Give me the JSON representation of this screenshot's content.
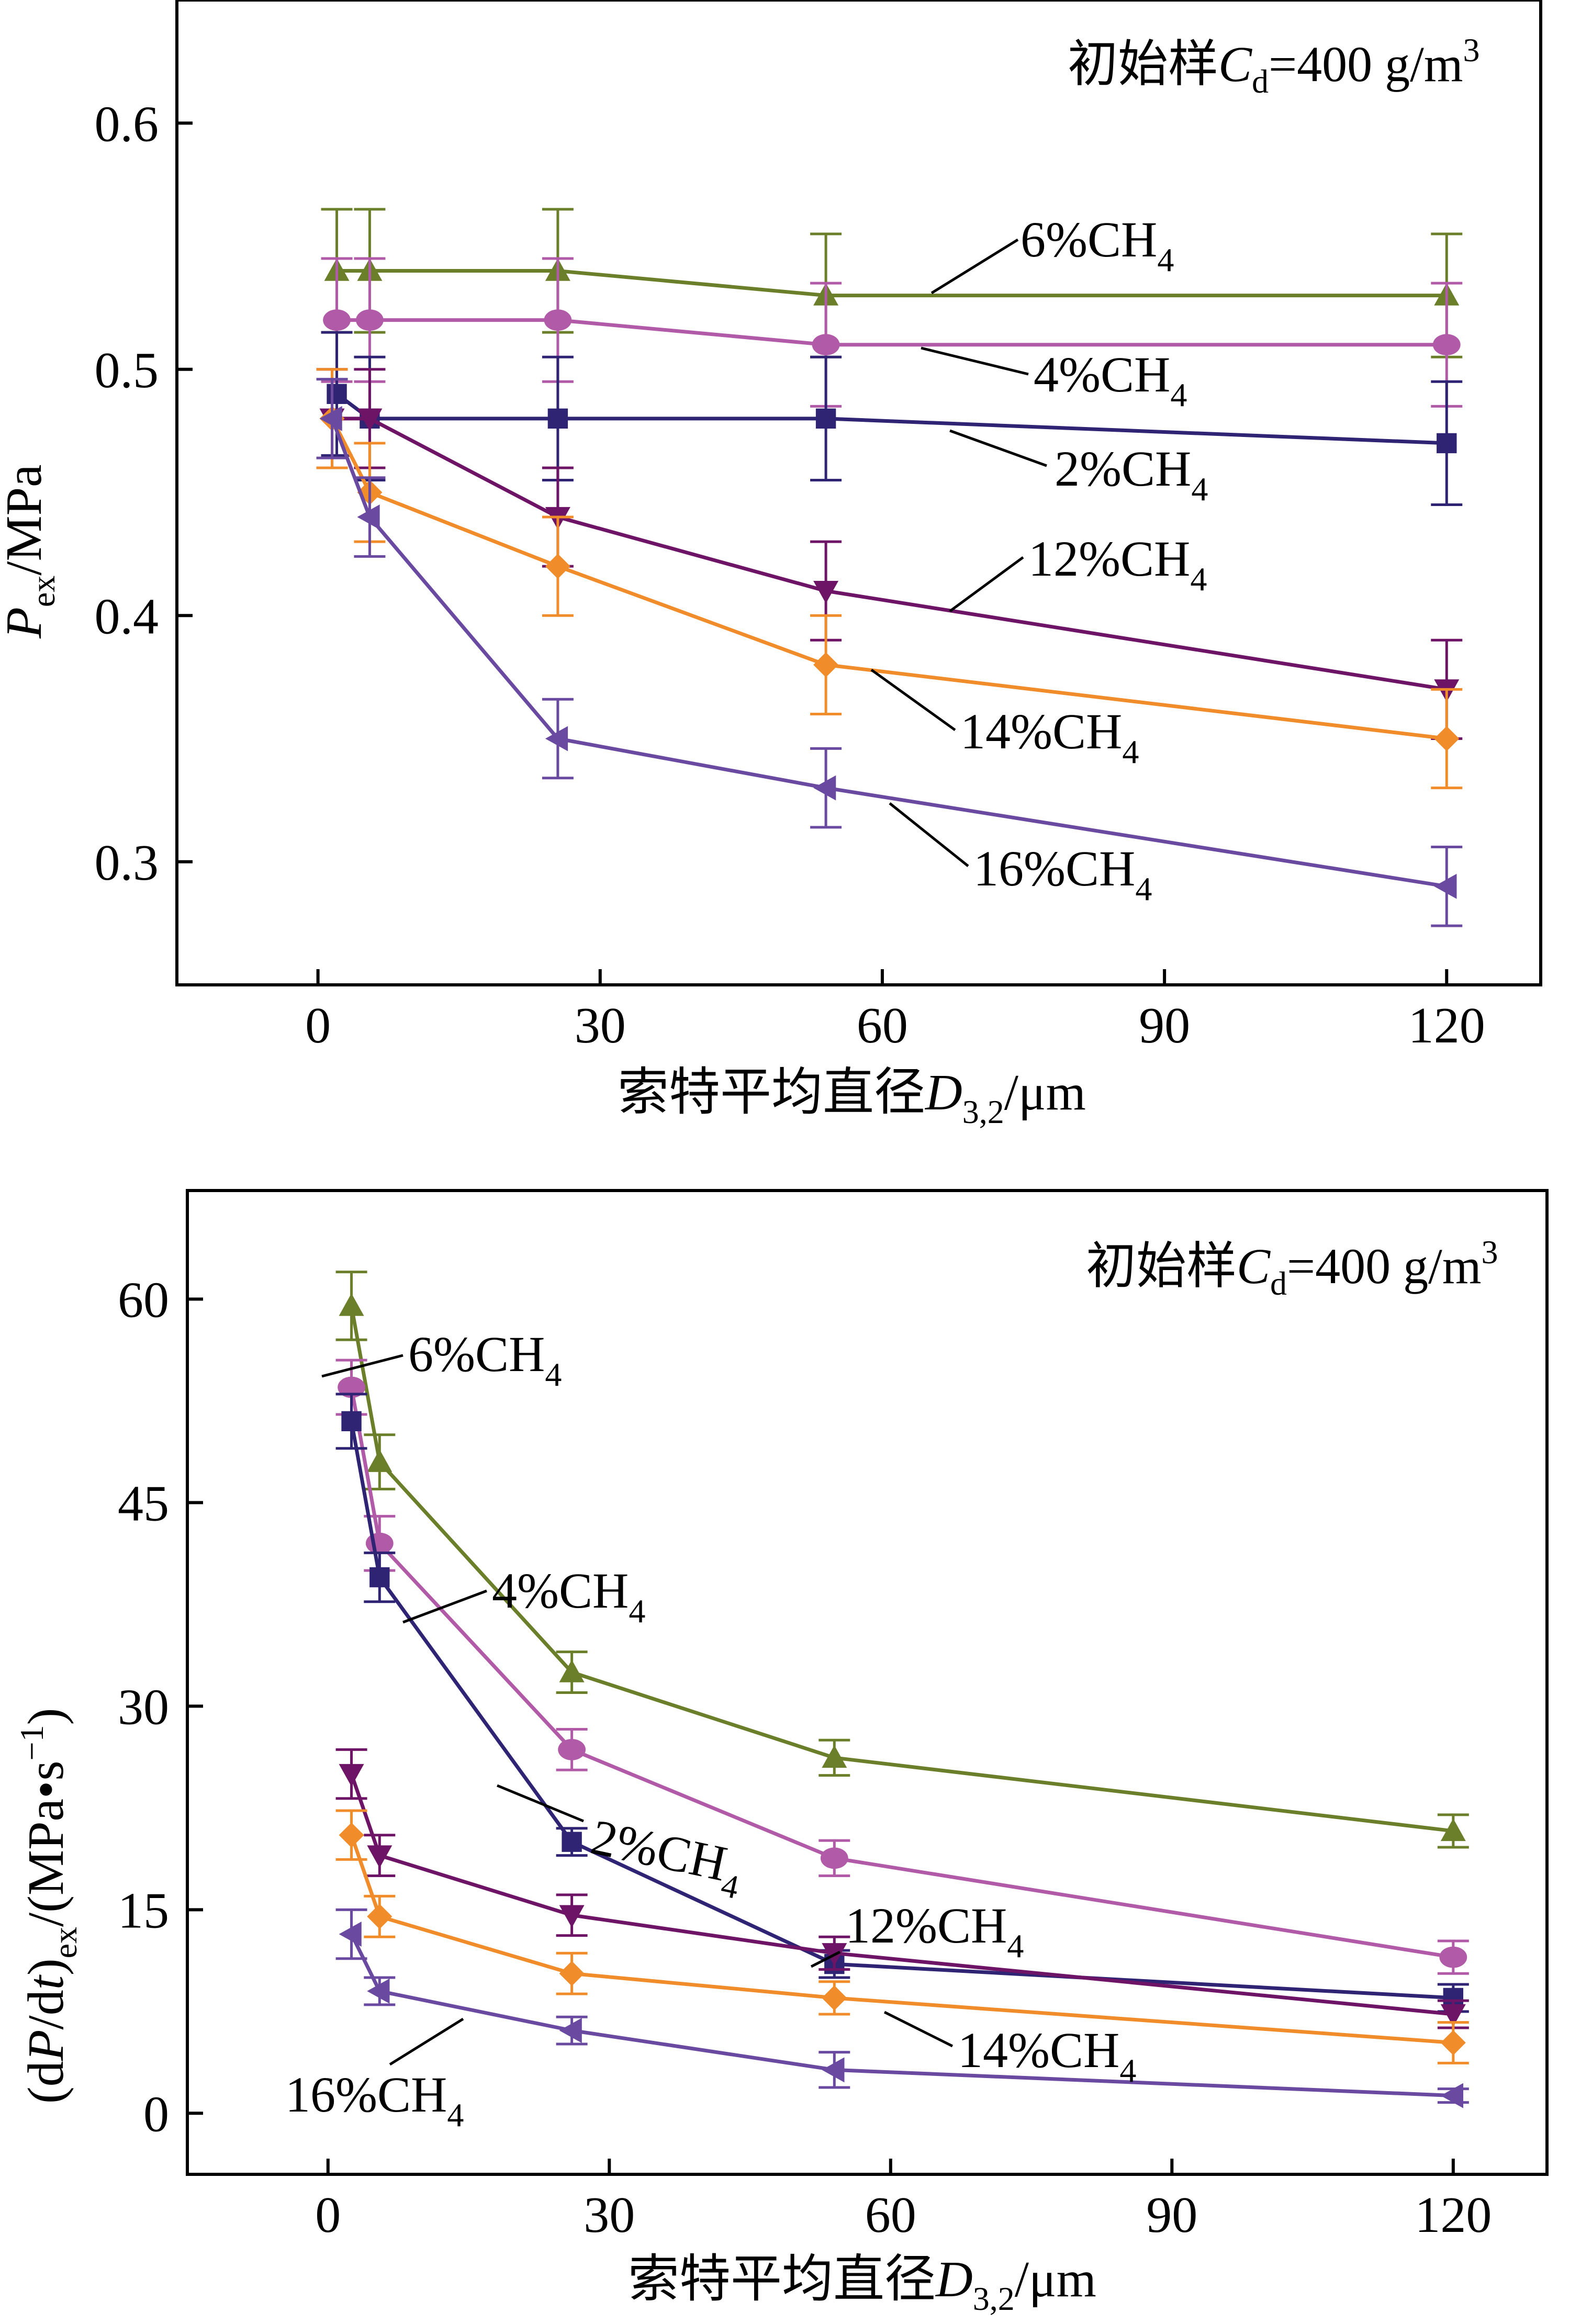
{
  "chart_data": [
    {
      "type": "line",
      "annotation": "初始样C_d=400 g/m³",
      "annotation_parts": {
        "prefix": "初始样",
        "var": "C",
        "sub": "d",
        "value": "=400 g/m",
        "sup": "3"
      },
      "xlabel": "索特平均直径D_3,2/μm",
      "xlabel_parts": {
        "prefix": "索特平均直径",
        "var": "D",
        "sub": "3,2",
        "unit": "/μm"
      },
      "ylabel": "P_ex/MPa",
      "ylabel_parts": {
        "var": "P",
        "sub": "ex",
        "unit": "/MPa"
      },
      "xlim": [
        -15,
        130
      ],
      "ylim": [
        0.25,
        0.65
      ],
      "x_ticks": [
        0,
        30,
        60,
        90,
        120
      ],
      "x_tick_labels": [
        "0",
        "30",
        "60",
        "90",
        "120"
      ],
      "y_ticks": [
        0.3,
        0.4,
        0.5,
        0.6
      ],
      "y_tick_labels": [
        "0.3",
        "0.4",
        "0.5",
        "0.6"
      ],
      "grid": false,
      "legend": "inline labels",
      "series": [
        {
          "name": "6%CH4",
          "name_parts": {
            "main": "6%CH",
            "sub": "4"
          },
          "color": "#6b7f2a",
          "marker": "triangle-up",
          "x": [
            2,
            5.5,
            25.5,
            54,
            120
          ],
          "y": [
            0.54,
            0.54,
            0.54,
            0.53,
            0.53
          ],
          "err": [
            0.025,
            0.025,
            0.025,
            0.025,
            0.025
          ]
        },
        {
          "name": "4%CH4",
          "name_parts": {
            "main": "4%CH",
            "sub": "4"
          },
          "color": "#b05aa8",
          "marker": "circle",
          "x": [
            2,
            5.5,
            25.5,
            54,
            120
          ],
          "y": [
            0.52,
            0.52,
            0.52,
            0.51,
            0.51
          ],
          "err": [
            0.025,
            0.025,
            0.025,
            0.025,
            0.025
          ]
        },
        {
          "name": "2%CH4",
          "name_parts": {
            "main": "2%CH",
            "sub": "4"
          },
          "color": "#2f2373",
          "marker": "square",
          "x": [
            2,
            5.5,
            25.5,
            54,
            120
          ],
          "y": [
            0.49,
            0.48,
            0.48,
            0.48,
            0.47
          ],
          "err": [
            0.025,
            0.025,
            0.025,
            0.025,
            0.025
          ]
        },
        {
          "name": "12%CH4",
          "name_parts": {
            "main": "12%CH",
            "sub": "4"
          },
          "color": "#6e1466",
          "marker": "triangle-down",
          "x": [
            1.5,
            5.5,
            25.5,
            54,
            120
          ],
          "y": [
            0.48,
            0.48,
            0.44,
            0.41,
            0.37
          ],
          "err": [
            0.02,
            0.02,
            0.02,
            0.02,
            0.02
          ]
        },
        {
          "name": "14%CH4",
          "name_parts": {
            "main": "14%CH",
            "sub": "4"
          },
          "color": "#f08c2a",
          "marker": "diamond",
          "x": [
            1.5,
            5.5,
            25.5,
            54,
            120
          ],
          "y": [
            0.48,
            0.45,
            0.42,
            0.38,
            0.35
          ],
          "err": [
            0.02,
            0.02,
            0.02,
            0.02,
            0.02
          ]
        },
        {
          "name": "16%CH4",
          "name_parts": {
            "main": "16%CH",
            "sub": "4"
          },
          "color": "#6a4aa0",
          "marker": "triangle-left",
          "x": [
            1.5,
            5.5,
            25.5,
            54,
            120
          ],
          "y": [
            0.48,
            0.44,
            0.35,
            0.33,
            0.29
          ],
          "err": [
            0.016,
            0.016,
            0.016,
            0.016,
            0.016
          ]
        }
      ]
    },
    {
      "type": "line",
      "annotation": "初始样C_d=400 g/m³",
      "annotation_parts": {
        "prefix": "初始样",
        "var": "C",
        "sub": "d",
        "value": "=400 g/m",
        "sup": "3"
      },
      "xlabel": "索特平均直径D_3,2/μm",
      "xlabel_parts": {
        "prefix": "索特平均直径",
        "var": "D",
        "sub": "3,2",
        "unit": "/μm"
      },
      "ylabel": "(dP/dt)_ex/(MPa•s⁻¹)",
      "ylabel_parts": {
        "open": "(d",
        "var": "P",
        "mid": "/d",
        "var2": "t",
        "close": ")",
        "sub": "ex",
        "unit": "/(MPa•s",
        "sup": "−1",
        "end": ")"
      },
      "xlim": [
        -15,
        130
      ],
      "ylim": [
        -4.5,
        68
      ],
      "x_ticks": [
        0,
        30,
        60,
        90,
        120
      ],
      "x_tick_labels": [
        "0",
        "30",
        "60",
        "90",
        "120"
      ],
      "y_ticks": [
        0,
        15,
        30,
        45,
        60
      ],
      "y_tick_labels": [
        "0",
        "15",
        "30",
        "45",
        "60"
      ],
      "grid": false,
      "legend": "inline labels",
      "series": [
        {
          "name": "6%CH4",
          "name_parts": {
            "main": "6%CH",
            "sub": "4"
          },
          "color": "#6b7f2a",
          "marker": "triangle-up",
          "x": [
            2.5,
            5.5,
            26,
            54,
            120
          ],
          "y": [
            59.5,
            48,
            32.5,
            26.2,
            20.8
          ],
          "err": [
            2.5,
            2.0,
            1.5,
            1.3,
            1.2
          ]
        },
        {
          "name": "4%CH4",
          "name_parts": {
            "main": "4%CH",
            "sub": "4"
          },
          "color": "#b05aa8",
          "marker": "circle",
          "x": [
            2.5,
            5.5,
            26,
            54,
            120
          ],
          "y": [
            53.5,
            42,
            26.8,
            18.8,
            11.5
          ],
          "err": [
            2.0,
            2.0,
            1.5,
            1.3,
            1.2
          ]
        },
        {
          "name": "2%CH4",
          "name_parts": {
            "main": "2%CH",
            "sub": "4"
          },
          "color": "#2f2373",
          "marker": "square",
          "x": [
            2.5,
            5.5,
            26,
            54,
            120
          ],
          "y": [
            51,
            39.5,
            20,
            11,
            8.5
          ],
          "err": [
            2.0,
            1.8,
            1.0,
            1.0,
            1.0
          ]
        },
        {
          "name": "12%CH4",
          "name_parts": {
            "main": "12%CH",
            "sub": "4"
          },
          "color": "#6e1466",
          "marker": "triangle-down",
          "x": [
            2.5,
            5.5,
            26,
            54,
            120
          ],
          "y": [
            25,
            19,
            14.6,
            11.8,
            7.3
          ],
          "err": [
            1.8,
            1.5,
            1.5,
            1.2,
            1.0
          ]
        },
        {
          "name": "14%CH4",
          "name_parts": {
            "main": "14%CH",
            "sub": "4"
          },
          "color": "#f08c2a",
          "marker": "diamond",
          "x": [
            2.5,
            5.5,
            26,
            54,
            120
          ],
          "y": [
            20.5,
            14.5,
            10.3,
            8.5,
            5.2
          ],
          "err": [
            1.8,
            1.5,
            1.5,
            1.2,
            1.5
          ]
        },
        {
          "name": "16%CH4",
          "name_parts": {
            "main": "16%CH",
            "sub": "4"
          },
          "color": "#6a4aa0",
          "marker": "triangle-left",
          "x": [
            2.5,
            5.5,
            26,
            54,
            120
          ],
          "y": [
            13.2,
            9,
            6.1,
            3.2,
            1.3
          ],
          "err": [
            1.8,
            1.0,
            1.0,
            1.3,
            0.5
          ]
        }
      ]
    }
  ]
}
